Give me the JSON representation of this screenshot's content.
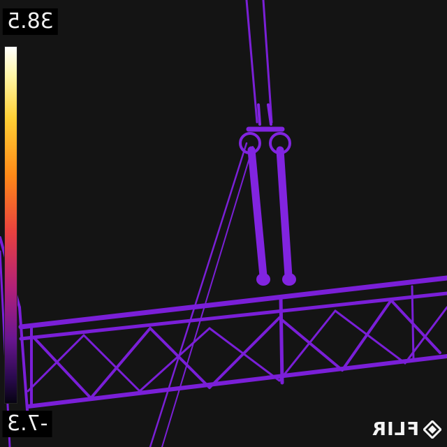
{
  "thermal_image": {
    "temperature_max": "38.5",
    "temperature_min": "-7.3",
    "brand": "FLIR",
    "palette": "iron",
    "structure_color": "#7a1fd8",
    "background_color": "#141414"
  }
}
